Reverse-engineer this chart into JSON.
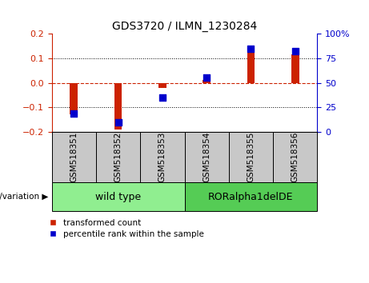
{
  "title": "GDS3720 / ILMN_1230284",
  "samples": [
    "GSM518351",
    "GSM518352",
    "GSM518353",
    "GSM518354",
    "GSM518355",
    "GSM518356"
  ],
  "red_bars": [
    -0.13,
    -0.19,
    -0.022,
    0.01,
    0.135,
    0.118
  ],
  "blue_squares_left": [
    -0.127,
    -0.163,
    -0.062,
    0.022,
    0.14,
    0.13
  ],
  "ylim_left": [
    -0.2,
    0.2
  ],
  "ylim_right": [
    0,
    100
  ],
  "left_yticks": [
    -0.2,
    -0.1,
    0.0,
    0.1,
    0.2
  ],
  "right_yticks": [
    0,
    25,
    50,
    75,
    100
  ],
  "bar_color": "#cc2200",
  "square_color": "#0000cc",
  "zero_line_color": "#cc2200",
  "grid_color": "#000000",
  "group1_label": "wild type",
  "group2_label": "RORalpha1delDE",
  "group1_color": "#90ee90",
  "group2_color": "#55cc55",
  "legend_red": "transformed count",
  "legend_blue": "percentile rank within the sample",
  "genotype_label": "genotype/variation",
  "bar_width": 0.18,
  "square_size": 28,
  "cell_color": "#c8c8c8",
  "fig_width": 4.61,
  "fig_height": 3.54,
  "dpi": 100
}
